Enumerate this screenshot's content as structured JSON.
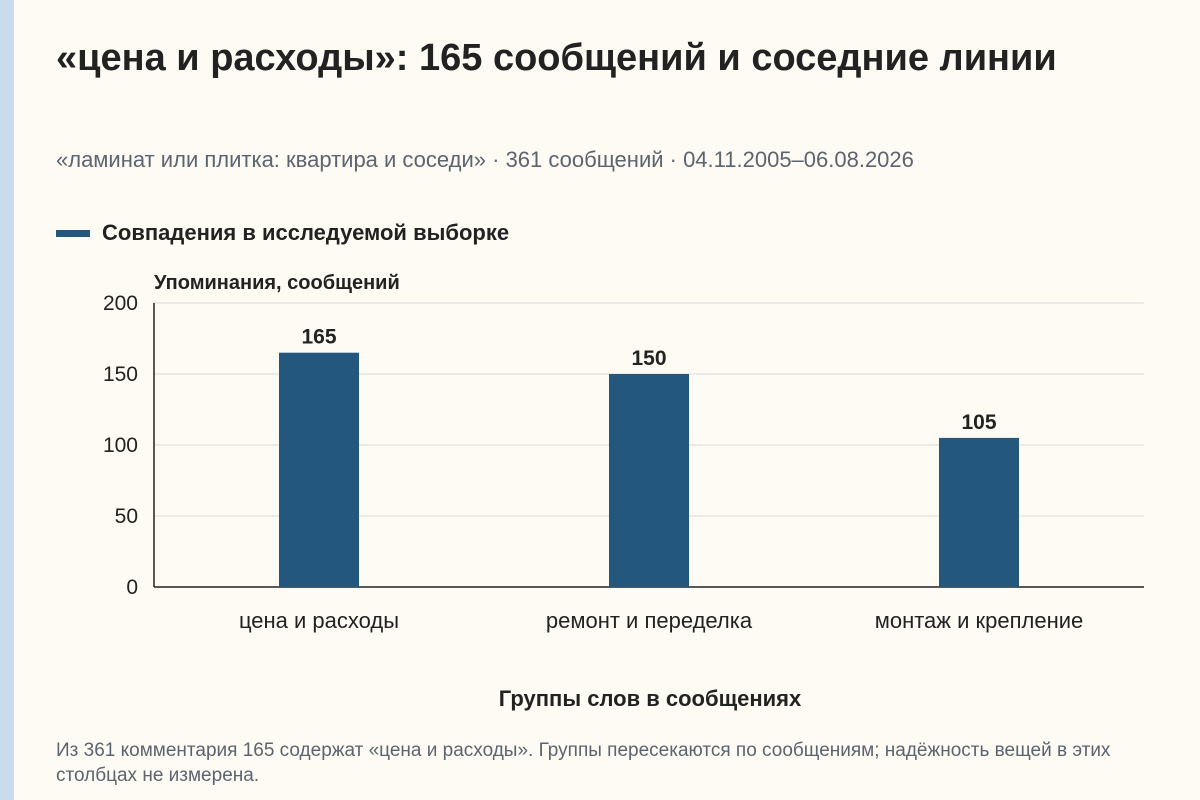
{
  "header": {
    "title": "«цена и расходы»: 165 сообщений и соседние линии",
    "subtitle": "«ламинат или плитка: квартира и соседи» · 361 сообщений · 04.11.2005–06.08.2026"
  },
  "legend": {
    "label": "Совпадения в исследуемой выборке"
  },
  "footer": {
    "note": "Из 361 комментария 165 содержат «цена и расходы». Группы пересекаются по сообщениям; надёжность вещей в этих столбцах не измерена."
  },
  "colors": {
    "bar": "#24577e",
    "grid": "#d8d8d8",
    "axis": "#222222",
    "stripe": "#c9dced"
  },
  "chart_data": {
    "type": "bar",
    "categories": [
      "цена и расходы",
      "ремонт и переделка",
      "монтаж и крепление"
    ],
    "series": [
      {
        "name": "Совпадения в исследуемой выборке",
        "values": [
          165,
          150,
          105
        ]
      }
    ],
    "xlabel": "Группы слов в сообщениях",
    "ylabel": "Упоминания, сообщений",
    "ylim": [
      0,
      200
    ],
    "yticks": [
      0,
      50,
      100,
      150,
      200
    ],
    "grid": true,
    "legend_position": "top-left"
  }
}
